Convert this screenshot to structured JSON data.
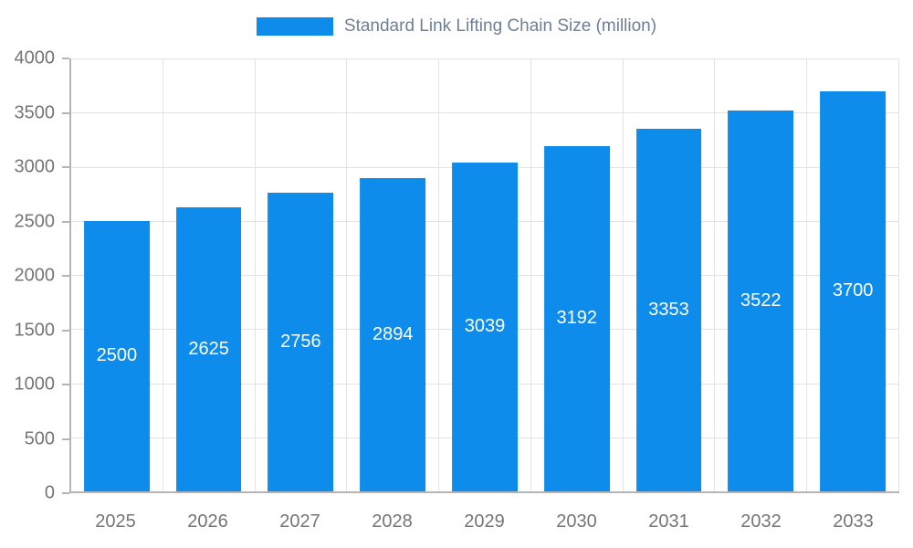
{
  "legend": {
    "label": "Standard Link Lifting Chain Size (million)"
  },
  "chart_data": {
    "type": "bar",
    "title": "Standard Link Lifting Chain Size (million)",
    "categories": [
      "2025",
      "2026",
      "2027",
      "2028",
      "2029",
      "2030",
      "2031",
      "2032",
      "2033"
    ],
    "values": [
      2500,
      2625,
      2756,
      2894,
      3039,
      3192,
      3353,
      3522,
      3700
    ],
    "xlabel": "",
    "ylabel": "",
    "ylim": [
      0,
      4000
    ],
    "ytick_step": 500,
    "grid": true,
    "legend_position": "top",
    "bar_color": "#0d8ceb",
    "value_label_color": "#ffffff",
    "axis_label_color": "#757575",
    "title_color": "#6e7f96",
    "gridline_color": "#e3e3e3"
  }
}
